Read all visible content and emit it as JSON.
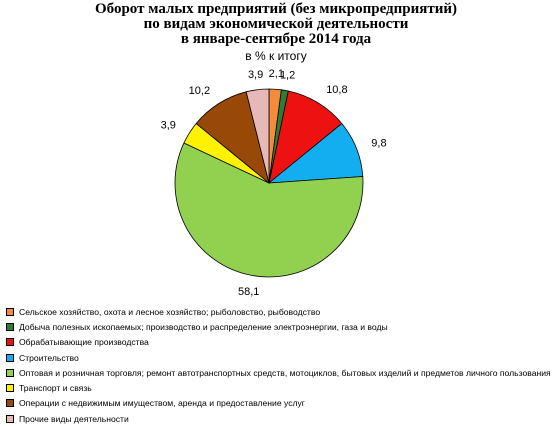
{
  "title_lines": [
    "Оборот малых предприятий (без микропредприятий)",
    "по видам экономической деятельности",
    "в январе-сентябре 2014 года"
  ],
  "subtitle": "в % к итогу",
  "chart_data": {
    "type": "pie",
    "title": "Оборот малых предприятий (без микропредприятий) по видам экономической деятельности в январе-сентябре 2014 года",
    "subtitle": "в % к итогу",
    "start_angle_deg": 0,
    "direction": "clockwise",
    "legend_position": "bottom",
    "slices": [
      {
        "label": "Сельское хозяйство, охота и лесное хозяйство; рыболовство, рыбоводство",
        "value": 2.1,
        "display": "2,1",
        "color": "#F28C3A"
      },
      {
        "label": "Добыча полезных ископаемых; производство и распределение электроэнергии, газа и воды",
        "value": 1.2,
        "display": "1,2",
        "color": "#2E7D32"
      },
      {
        "label": "Обрабатывающие производства",
        "value": 10.8,
        "display": "10,8",
        "color": "#EE1111"
      },
      {
        "label": "Строительство",
        "value": 9.8,
        "display": "9,8",
        "color": "#12AEEF"
      },
      {
        "label": "Оптовая и розничная торговля; ремонт автотранспортных средств, мотоциклов, бытовых изделий и предметов личного пользования",
        "value": 58.1,
        "display": "58,1",
        "color": "#92D050"
      },
      {
        "label": "Транспорт и связь",
        "value": 3.9,
        "display": "3,9",
        "color": "#FFF200"
      },
      {
        "label": "Операции с недвижимым имуществом, аренда и предоставление услуг",
        "value": 10.2,
        "display": "10,2",
        "color": "#984807"
      },
      {
        "label": "Прочие виды деятельности",
        "value": 3.9,
        "display": "3,9",
        "color": "#E6B9B8"
      }
    ]
  }
}
